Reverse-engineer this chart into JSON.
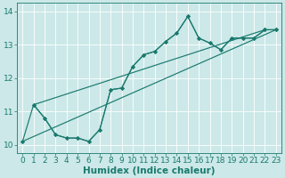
{
  "xlabel": "Humidex (Indice chaleur)",
  "xlim": [
    -0.5,
    23.5
  ],
  "ylim": [
    9.75,
    14.25
  ],
  "yticks": [
    10,
    11,
    12,
    13,
    14
  ],
  "xticks": [
    0,
    1,
    2,
    3,
    4,
    5,
    6,
    7,
    8,
    9,
    10,
    11,
    12,
    13,
    14,
    15,
    16,
    17,
    18,
    19,
    20,
    21,
    22,
    23
  ],
  "bg_color": "#cce8e8",
  "line_color": "#1a7a6e",
  "grid_color": "#ffffff",
  "curves": [
    {
      "x": [
        0,
        1,
        2,
        3,
        4,
        5,
        6,
        7,
        8,
        9,
        10,
        11,
        12,
        13,
        14,
        15,
        16,
        17,
        18,
        19,
        20,
        21,
        22,
        23
      ],
      "y": [
        10.1,
        11.2,
        10.8,
        10.3,
        10.2,
        10.2,
        10.1,
        10.45,
        11.65,
        11.7,
        12.35,
        12.7,
        12.8,
        13.1,
        13.35,
        13.85,
        13.2,
        13.05,
        12.85,
        13.2,
        13.2,
        13.2,
        13.45,
        13.45
      ]
    },
    {
      "x": [
        1,
        2,
        3,
        4,
        5,
        6,
        7,
        8,
        9,
        10,
        11,
        12,
        13,
        14,
        15,
        16,
        17,
        18,
        19,
        20,
        21,
        22,
        23
      ],
      "y": [
        11.2,
        10.8,
        10.3,
        10.2,
        10.2,
        10.1,
        10.45,
        11.65,
        11.7,
        12.35,
        12.7,
        12.8,
        13.1,
        13.35,
        13.85,
        13.2,
        13.05,
        12.85,
        13.2,
        13.2,
        13.2,
        13.45,
        13.45
      ]
    },
    {
      "x": [
        0,
        23
      ],
      "y": [
        10.1,
        13.45
      ]
    },
    {
      "x": [
        1,
        22
      ],
      "y": [
        11.2,
        13.45
      ]
    }
  ],
  "font_color": "#1a7a6e",
  "tick_fontsize": 6.5,
  "label_fontsize": 7.5,
  "marker_size": 2.2,
  "line_width": 0.85
}
